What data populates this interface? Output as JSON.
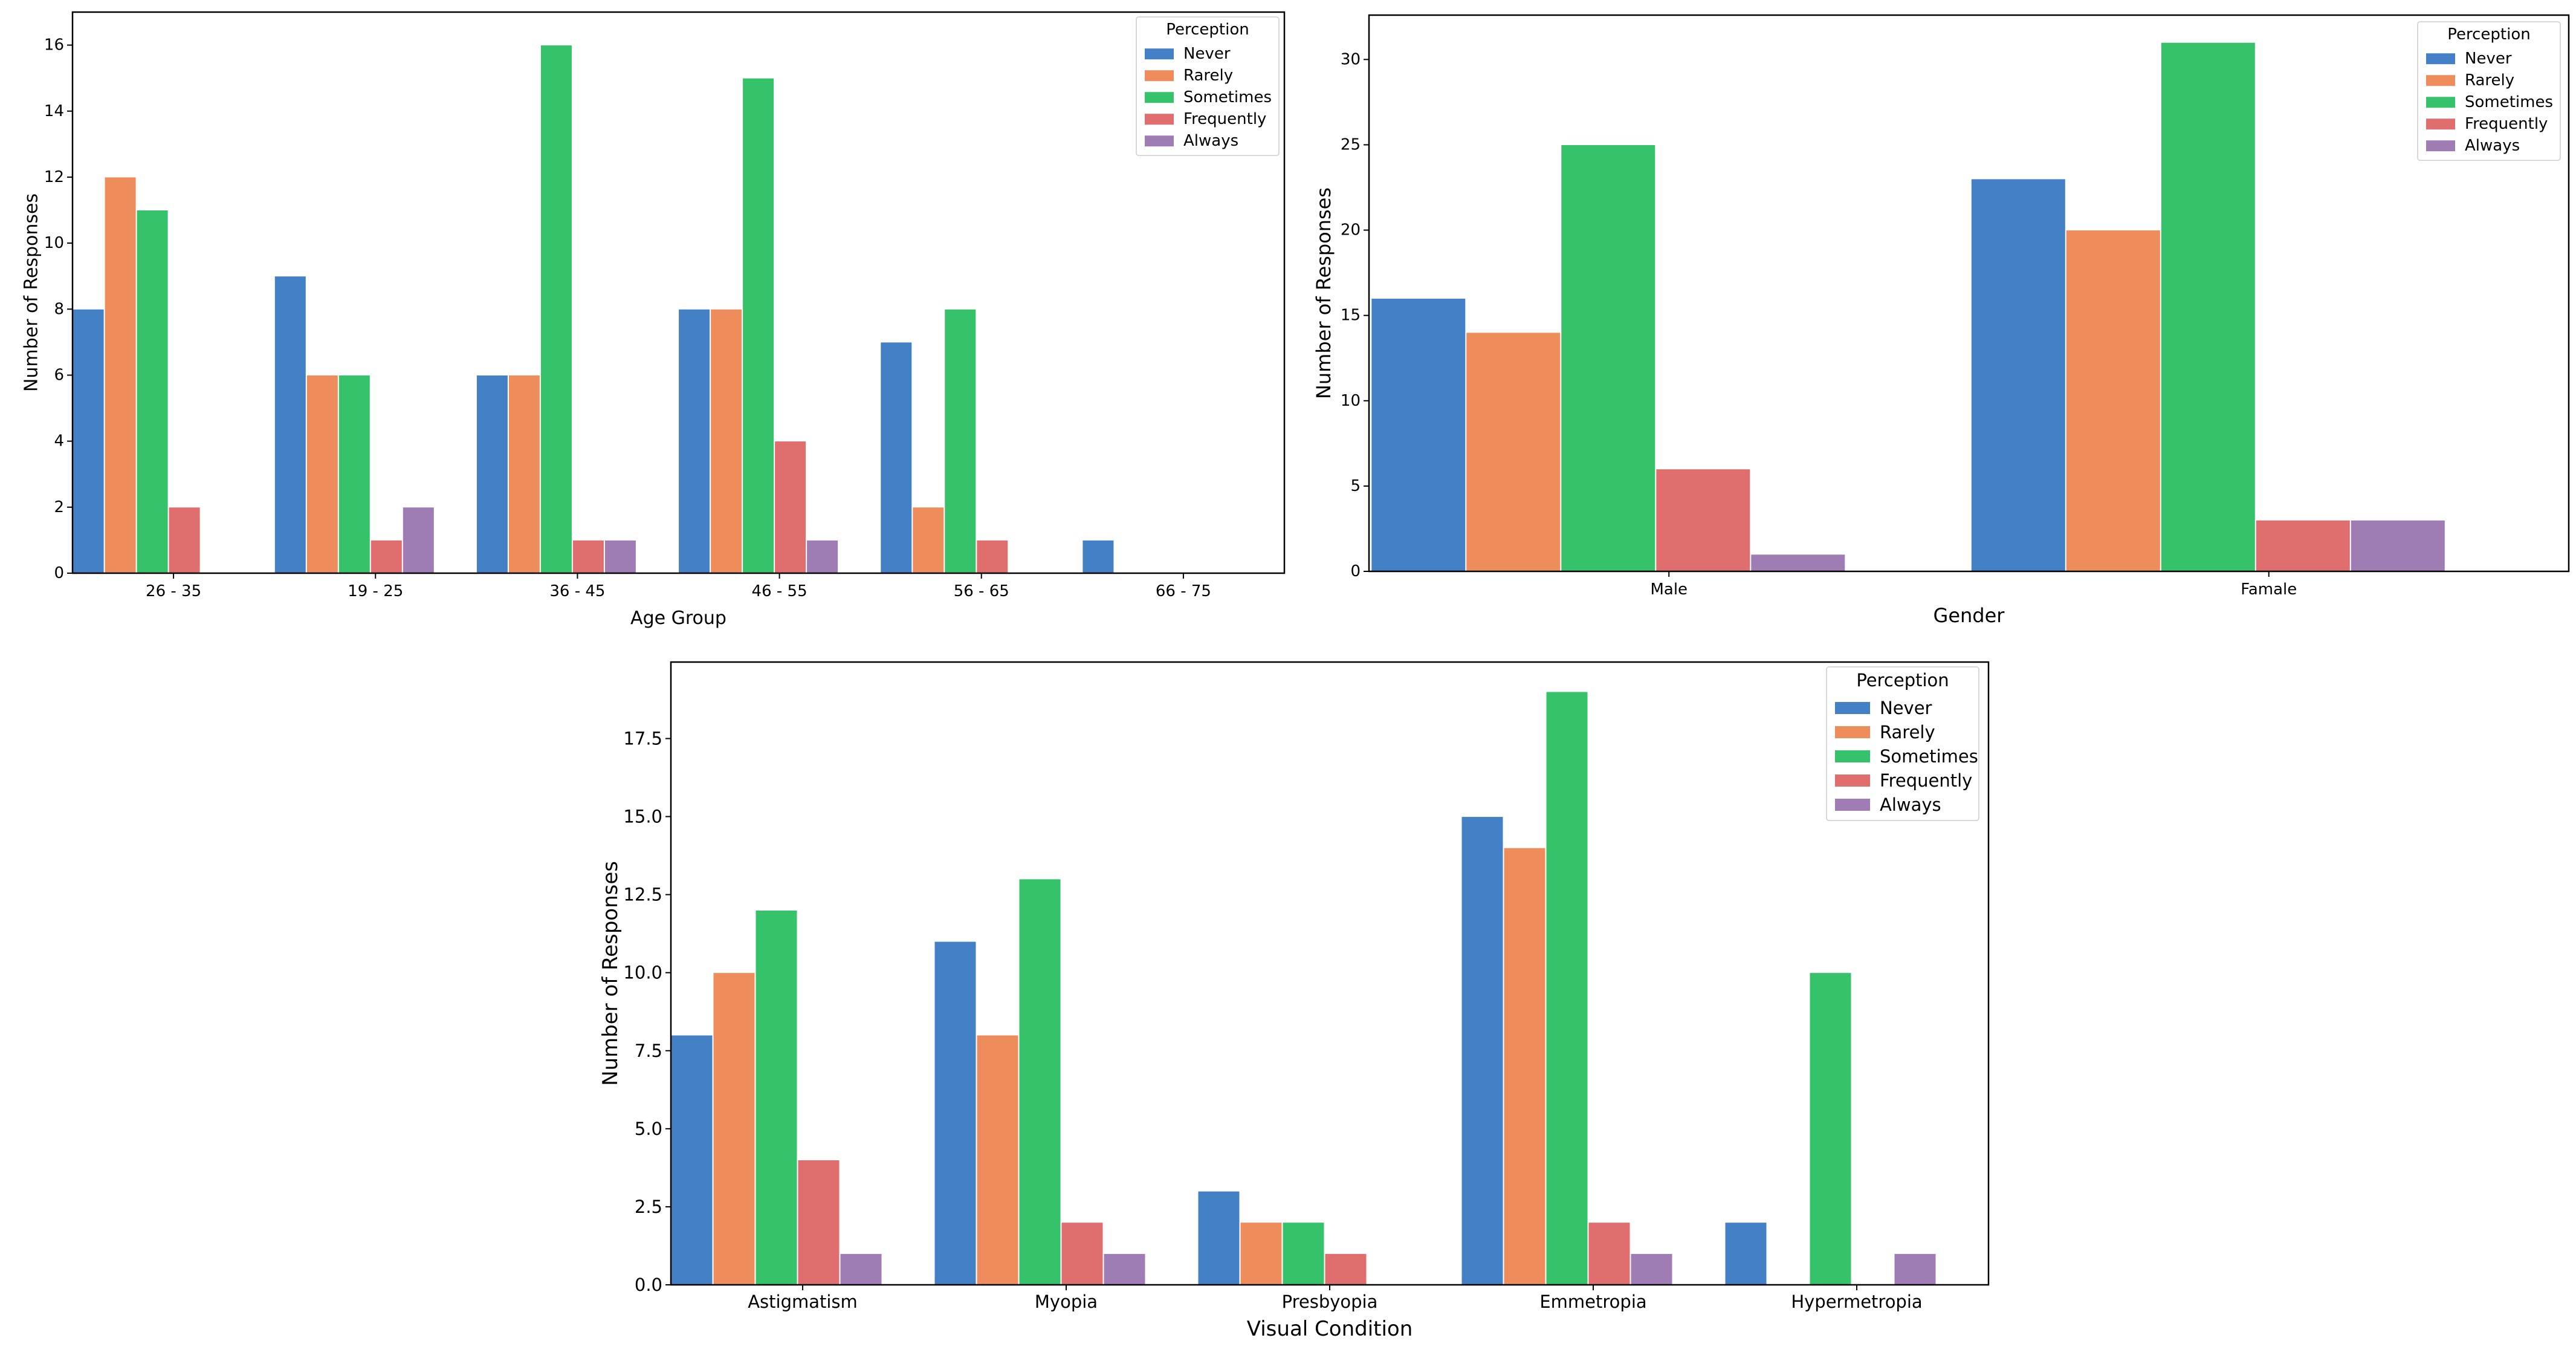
{
  "colors": {
    "Never": "#4380C6",
    "Rarely": "#EE8D5B",
    "Sometimes": "#35C26A",
    "Frequently": "#E06E6E",
    "Always": "#A07CB5"
  },
  "chart_data": [
    {
      "type": "bar",
      "xlabel": "Age Group",
      "ylabel": "Number of Responses",
      "categories": [
        "26 - 35",
        "19 - 25",
        "36 - 45",
        "46 - 55",
        "56 - 65",
        "66 - 75"
      ],
      "ylim": [
        0,
        17
      ],
      "yticks": [
        0,
        2,
        4,
        6,
        8,
        10,
        12,
        14,
        16
      ],
      "ytick_labels": [
        "0",
        "2",
        "4",
        "6",
        "8",
        "10",
        "12",
        "14",
        "16"
      ],
      "legend_title": "Perception",
      "legend_position": "top-right",
      "series": [
        {
          "name": "Never",
          "values": [
            8,
            9,
            6,
            8,
            7,
            1
          ]
        },
        {
          "name": "Rarely",
          "values": [
            12,
            6,
            6,
            8,
            2,
            0
          ]
        },
        {
          "name": "Sometimes",
          "values": [
            11,
            6,
            16,
            15,
            8,
            0
          ]
        },
        {
          "name": "Frequently",
          "values": [
            2,
            1,
            1,
            4,
            1,
            0
          ]
        },
        {
          "name": "Always",
          "values": [
            0,
            2,
            1,
            1,
            0,
            0
          ]
        }
      ]
    },
    {
      "type": "bar",
      "xlabel": "Gender",
      "ylabel": "Number of Responses",
      "categories": [
        "Male",
        "Famale"
      ],
      "ylim": [
        0,
        32.6
      ],
      "yticks": [
        0,
        5,
        10,
        15,
        20,
        25,
        30
      ],
      "ytick_labels": [
        "0",
        "5",
        "10",
        "15",
        "20",
        "25",
        "30"
      ],
      "legend_title": "Perception",
      "legend_position": "top-right",
      "series": [
        {
          "name": "Never",
          "values": [
            16,
            23
          ]
        },
        {
          "name": "Rarely",
          "values": [
            14,
            20
          ]
        },
        {
          "name": "Sometimes",
          "values": [
            25,
            31
          ]
        },
        {
          "name": "Frequently",
          "values": [
            6,
            3
          ]
        },
        {
          "name": "Always",
          "values": [
            1,
            3
          ]
        }
      ]
    },
    {
      "type": "bar",
      "xlabel": "Visual Condition",
      "ylabel": "Number of Responses",
      "categories": [
        "Astigmatism",
        "Myopia",
        "Presbyopia",
        "Emmetropia",
        "Hypermetropia"
      ],
      "ylim": [
        0,
        19.95
      ],
      "yticks": [
        0,
        2.5,
        5,
        7.5,
        10,
        12.5,
        15,
        17.5
      ],
      "ytick_labels": [
        "0.0",
        "2.5",
        "5.0",
        "7.5",
        "10.0",
        "12.5",
        "15.0",
        "17.5"
      ],
      "legend_title": "Perception",
      "legend_position": "top-right",
      "series": [
        {
          "name": "Never",
          "values": [
            8,
            11,
            3,
            15,
            2
          ]
        },
        {
          "name": "Rarely",
          "values": [
            10,
            8,
            2,
            14,
            0
          ]
        },
        {
          "name": "Sometimes",
          "values": [
            12,
            13,
            2,
            19,
            10
          ]
        },
        {
          "name": "Frequently",
          "values": [
            4,
            2,
            1,
            2,
            0
          ]
        },
        {
          "name": "Always",
          "values": [
            1,
            1,
            0,
            1,
            1
          ]
        }
      ]
    }
  ]
}
